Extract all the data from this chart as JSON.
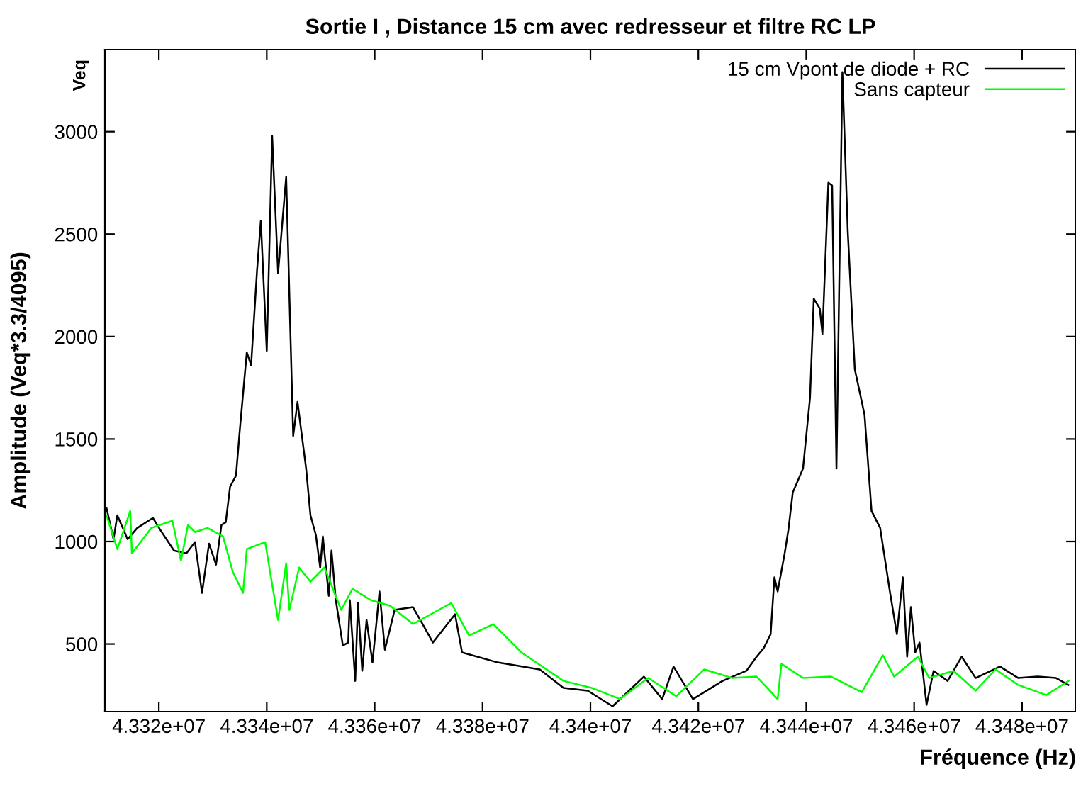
{
  "chart_data": {
    "type": "line",
    "title": "Sortie I , Distance 15 cm avec redresseur et filtre RC LP",
    "xlabel": "Fréquence (Hz)",
    "ylabel": "Amplitude (Veq*3.3/4095)",
    "annotations": [
      "Veq"
    ],
    "xlim": [
      43310000,
      43490000
    ],
    "xticks": [
      {
        "value": 43320000,
        "label": "4.332e+07"
      },
      {
        "value": 43340000,
        "label": "4.334e+07"
      },
      {
        "value": 43360000,
        "label": "4.336e+07"
      },
      {
        "value": 43380000,
        "label": "4.338e+07"
      },
      {
        "value": 43400000,
        "label": "4.34e+07"
      },
      {
        "value": 43420000,
        "label": "4.342e+07"
      },
      {
        "value": 43440000,
        "label": "4.344e+07"
      },
      {
        "value": 43460000,
        "label": "4.346e+07"
      },
      {
        "value": 43480000,
        "label": "4.348e+07"
      }
    ],
    "ylim": [
      170,
      3400
    ],
    "yticks": [
      500,
      1000,
      1500,
      2000,
      2500,
      3000
    ],
    "grid": false,
    "legend": "top right",
    "series": [
      {
        "name": "15 cm Vpont de diode + RC",
        "color": "#000000",
        "x": [
          43310300,
          43311600,
          43312300,
          43314200,
          43316000,
          43318900,
          43320200,
          43322800,
          43325100,
          43326700,
          43328000,
          43329300,
          43330600,
          43331600,
          43332400,
          43333200,
          43334300,
          43335000,
          43336300,
          43337100,
          43338200,
          43338900,
          43340000,
          43341000,
          43342100,
          43343600,
          43344900,
          43345700,
          43347300,
          43348100,
          43349100,
          43349900,
          43350400,
          43351500,
          43352000,
          43352800,
          43354100,
          43355100,
          43355400,
          43356400,
          43356900,
          43357700,
          43358500,
          43359600,
          43360900,
          43361900,
          43363700,
          43367100,
          43368900,
          43370800,
          43374900,
          43376200,
          43382800,
          43390600,
          43395000,
          43399500,
          43404100,
          43409900,
          43413300,
          43415400,
          43419000,
          43424500,
          43428900,
          43430800,
          43432100,
          43433400,
          43434100,
          43434700,
          43436000,
          43436700,
          43437500,
          43439400,
          43440700,
          43441400,
          43442500,
          43443000,
          43444100,
          43444800,
          43445600,
          43446700,
          43447700,
          43449000,
          43450800,
          43452100,
          43453700,
          43455500,
          43456800,
          43457900,
          43458700,
          43459400,
          43460200,
          43461000,
          43462300,
          43463600,
          43466200,
          43468800,
          43471400,
          43475900,
          43479300,
          43482900,
          43486300,
          43488600
        ],
        "values": [
          1163,
          1011,
          1128,
          1011,
          1066,
          1115,
          1059,
          956,
          942,
          997,
          749,
          990,
          887,
          1080,
          1094,
          1267,
          1322,
          1543,
          1923,
          1860,
          2323,
          2565,
          1930,
          2979,
          2309,
          2779,
          1515,
          1681,
          1356,
          1128,
          1032,
          873,
          1025,
          735,
          956,
          714,
          493,
          507,
          714,
          320,
          700,
          369,
          617,
          410,
          756,
          472,
          666,
          680,
          597,
          507,
          645,
          459,
          410,
          376,
          286,
          272,
          196,
          341,
          231,
          390,
          231,
          320,
          369,
          438,
          479,
          548,
          825,
          756,
          942,
          1059,
          1239,
          1356,
          1702,
          2185,
          2137,
          2012,
          2751,
          2737,
          1356,
          3290,
          2510,
          1840,
          1619,
          1149,
          1066,
          756,
          548,
          825,
          438,
          680,
          459,
          507,
          203,
          369,
          320,
          438,
          334,
          390,
          334,
          341,
          334,
          300
        ]
      },
      {
        "name": "Sans capteur",
        "color": "#00ff00",
        "x": [
          43310300,
          43312300,
          43314700,
          43315000,
          43318600,
          43322500,
          43324100,
          43325400,
          43326700,
          43329000,
          43331900,
          43333700,
          43335600,
          43336300,
          43339700,
          43342100,
          43343600,
          43344200,
          43346000,
          43348100,
          43350700,
          43353800,
          43355900,
          43359300,
          43362900,
          43367100,
          43374200,
          43377500,
          43382000,
          43387200,
          43395000,
          43400200,
          43405500,
          43410700,
          43415900,
          43421100,
          43426300,
          43430800,
          43434700,
          43435400,
          43439400,
          43444600,
          43450300,
          43454200,
          43456300,
          43460700,
          43462800,
          43467300,
          43471400,
          43475100,
          43479300,
          43484500,
          43488600
        ],
        "values": [
          1128,
          963,
          1149,
          942,
          1066,
          1101,
          907,
          1080,
          1046,
          1066,
          1025,
          852,
          749,
          963,
          997,
          617,
          894,
          666,
          873,
          804,
          873,
          666,
          770,
          714,
          686,
          597,
          700,
          541,
          597,
          459,
          320,
          286,
          231,
          334,
          245,
          376,
          334,
          341,
          231,
          403,
          334,
          341,
          265,
          445,
          341,
          438,
          334,
          369,
          272,
          376,
          300,
          251,
          320
        ]
      }
    ]
  }
}
